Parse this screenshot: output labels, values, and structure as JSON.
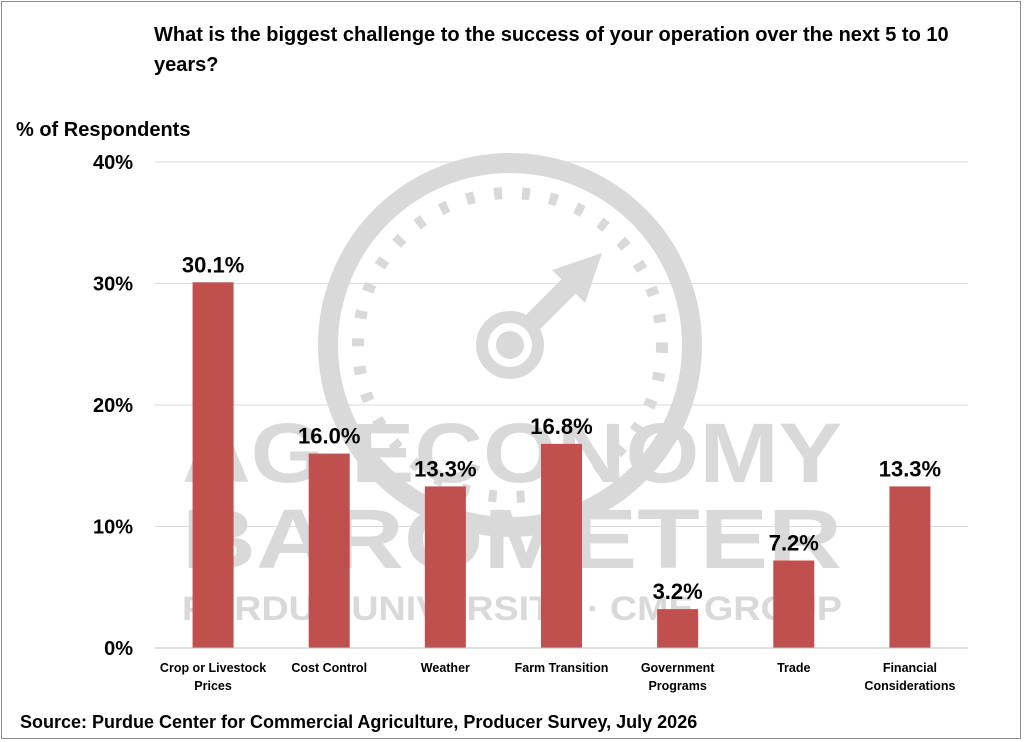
{
  "title": "What is the biggest challenge to the success of your operation over the next 5 to 10 years?",
  "source": "Source: Purdue Center for Commercial Agriculture, Producer Survey, July 2026",
  "watermark": {
    "line1": "AG ECONOMY",
    "line2": "BAROMETER",
    "line3": "PURDUE UNIVERSITY · CME GROUP",
    "color": "#d9d9d9",
    "icon": "gauge-icon"
  },
  "colors": {
    "bar": "#c0504d",
    "grid": "#d9d9d9"
  },
  "chart_data": {
    "type": "bar",
    "title": "What is the biggest challenge to the success of your operation over the next 5 to 10 years?",
    "ylabel": "% of Respondents",
    "xlabel": "",
    "categories": [
      [
        "Crop or Livestock",
        "Prices"
      ],
      [
        "Cost Control"
      ],
      [
        "Weather"
      ],
      [
        "Farm Transition"
      ],
      [
        "Government",
        "Programs"
      ],
      [
        "Trade"
      ],
      [
        "Financial",
        "Considerations"
      ]
    ],
    "values": [
      30.1,
      16.0,
      13.3,
      16.8,
      3.2,
      7.2,
      13.3
    ],
    "data_labels": [
      "30.1%",
      "16.0%",
      "13.3%",
      "16.8%",
      "3.2%",
      "7.2%",
      "13.3%"
    ],
    "yticks": [
      0,
      10,
      20,
      30,
      40
    ],
    "ytick_labels": [
      "0%",
      "10%",
      "20%",
      "30%",
      "40%"
    ],
    "ylim": [
      0,
      40
    ],
    "grid": true,
    "legend": "none"
  }
}
